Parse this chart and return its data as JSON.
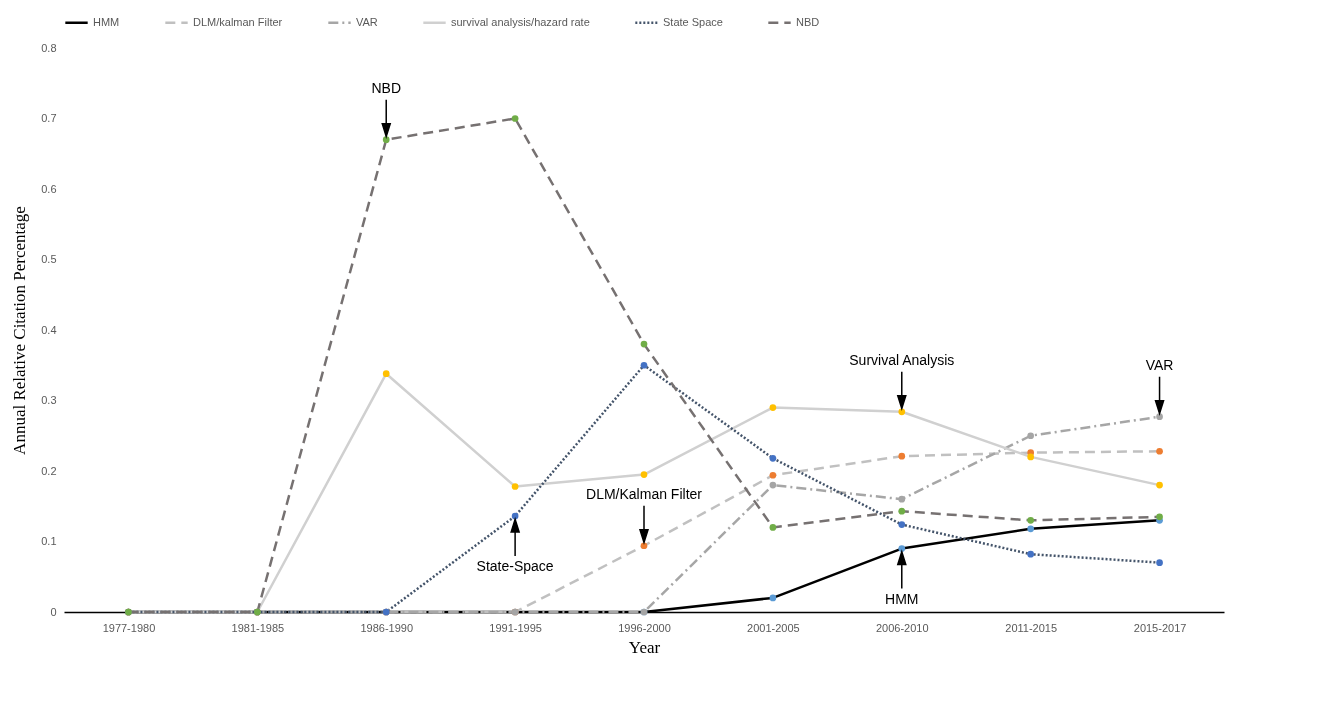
{
  "chart_data": {
    "type": "line",
    "xlabel": "Year",
    "ylabel": "Annual Relative Citation Percentage",
    "categories": [
      "1977-1980",
      "1981-1985",
      "1986-1990",
      "1991-1995",
      "1996-2000",
      "2001-2005",
      "2006-2010",
      "2011-2015",
      "2015-2017"
    ],
    "ylim": [
      0,
      0.8
    ],
    "yticks": [
      0,
      0.1,
      0.2,
      0.3,
      0.4,
      0.5,
      0.6,
      0.7,
      0.8
    ],
    "grid": false,
    "legend": "top",
    "marker": "circle",
    "series": [
      {
        "name": "HMM",
        "color": "#000000",
        "line_style": "solid",
        "colors": [
          "#5b9bd5",
          "#5b9bd5",
          "#5b9bd5",
          "#5b9bd5",
          "#5b9bd5",
          "#5b9bd5",
          "#5b9bd5",
          "#5b9bd5",
          "#5b9bd5"
        ],
        "values": [
          0,
          0,
          0,
          0,
          0,
          0.02,
          0.09,
          0.118,
          0.13
        ]
      },
      {
        "name": "DLM/kalman Filter",
        "color": "#c0c0c0",
        "line_style": "dashed",
        "colors": [
          "#ed7d31",
          "#ed7d31",
          "#ed7d31",
          "#ed7d31",
          "#ed7d31",
          "#ed7d31",
          "#ed7d31",
          "#ed7d31",
          "#ed7d31"
        ],
        "values": [
          0,
          0,
          0,
          0,
          0.094,
          0.194,
          0.221,
          0.226,
          0.228
        ]
      },
      {
        "name": "VAR",
        "color": "#a6a6a6",
        "line_style": "dashdot",
        "colors": [
          "#a5a5a5",
          "#a5a5a5",
          "#a5a5a5",
          "#a5a5a5",
          "#a5a5a5",
          "#a5a5a5",
          "#a5a5a5",
          "#a5a5a5",
          "#a5a5a5"
        ],
        "values": [
          0,
          0,
          0,
          0,
          0,
          0.18,
          0.16,
          0.25,
          0.277
        ]
      },
      {
        "name": "survival analysis/hazard rate",
        "color": "#d0d0d0",
        "line_style": "solid",
        "colors": [
          "#ffc000",
          "#ffc000",
          "#ffc000",
          "#ffc000",
          "#ffc000",
          "#ffc000",
          "#ffc000",
          "#ffc000",
          "#ffc000"
        ],
        "values": [
          0,
          0,
          0.338,
          0.178,
          0.195,
          0.29,
          0.284,
          0.22,
          0.18
        ]
      },
      {
        "name": "State Space",
        "color": "#44546a",
        "line_style": "dotted",
        "colors": [
          "#4472c4",
          "#4472c4",
          "#4472c4",
          "#4472c4",
          "#4472c4",
          "#4472c4",
          "#4472c4",
          "#4472c4",
          "#4472c4"
        ],
        "values": [
          0,
          0,
          0,
          0.136,
          0.35,
          0.218,
          0.124,
          0.082,
          0.07
        ]
      },
      {
        "name": "NBD",
        "color": "#767171",
        "line_style": "dashed",
        "colors": [
          "#70ad47",
          "#70ad47",
          "#70ad47",
          "#70ad47",
          "#70ad47",
          "#70ad47",
          "#70ad47",
          "#70ad47",
          "#70ad47"
        ],
        "values": [
          0,
          0,
          0.67,
          0.7,
          0.38,
          0.12,
          0.143,
          0.13,
          0.135
        ]
      }
    ],
    "annotations": [
      {
        "text": "NBD",
        "x": "1986-1990",
        "y": 0.67
      },
      {
        "text": "State-Space",
        "x": "1991-1995",
        "y": 0.136
      },
      {
        "text": "DLM/Kalman Filter",
        "x": "1996-2000",
        "y": 0.094
      },
      {
        "text": "Survival Analysis",
        "x": "2006-2010",
        "y": 0.284
      },
      {
        "text": "VAR",
        "x": "2015-2017",
        "y": 0.277
      },
      {
        "text": "HMM",
        "x": "2006-2010",
        "y": 0.09
      }
    ]
  }
}
